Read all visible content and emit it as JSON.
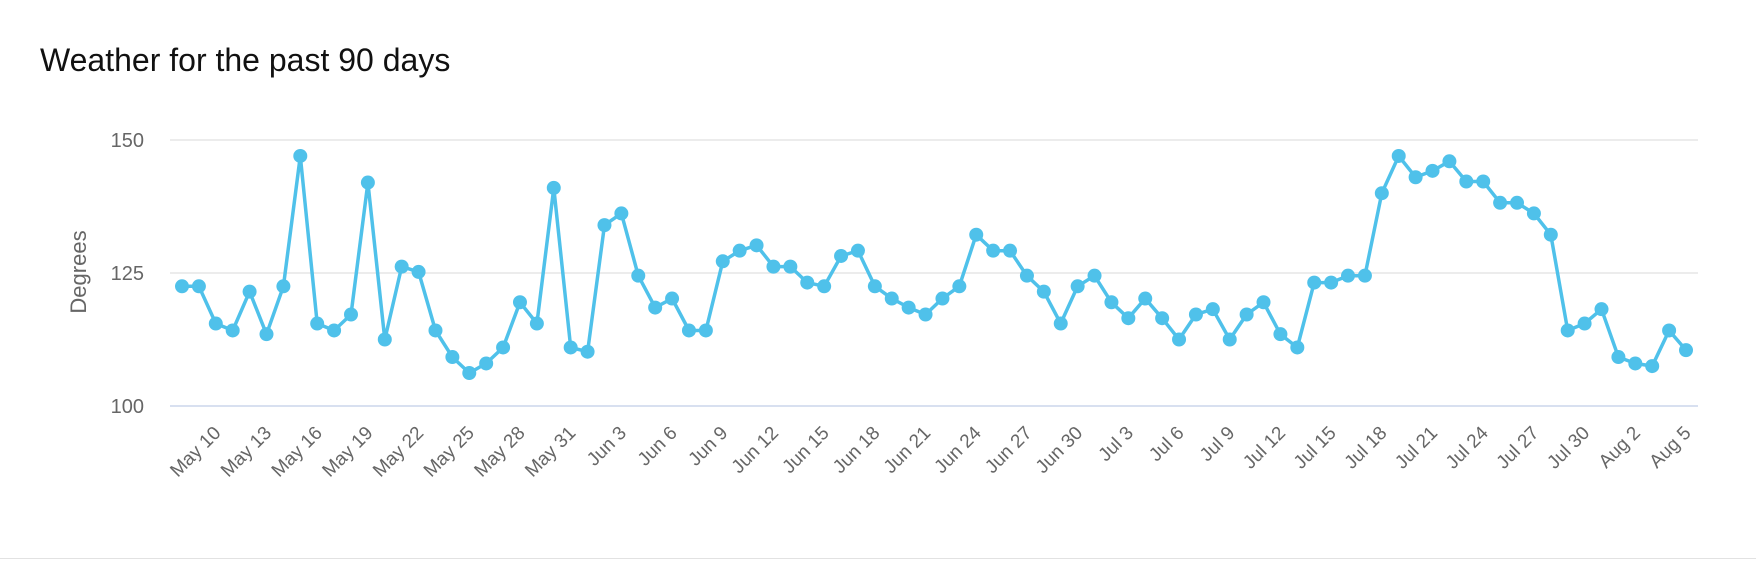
{
  "title": "Weather for the past 90 days",
  "chart_data": {
    "type": "line",
    "title": "Weather for the past 90 days",
    "ylabel": "Degrees",
    "xlabel": "",
    "ylim": [
      100,
      150
    ],
    "yticks": [
      100,
      125,
      150
    ],
    "grid": true,
    "color": "#4fc1ea",
    "tick_labels": [
      "May 10",
      "May 13",
      "May 16",
      "May 19",
      "May 22",
      "May 25",
      "May 28",
      "May 31",
      "Jun 3",
      "Jun 6",
      "Jun 9",
      "Jun 12",
      "Jun 15",
      "Jun 18",
      "Jun 21",
      "Jun 24",
      "Jun 27",
      "Jun 30",
      "Jul 3",
      "Jul 6",
      "Jul 9",
      "Jul 12",
      "Jul 15",
      "Jul 18",
      "Jul 21",
      "Jul 24",
      "Jul 27",
      "Jul 30",
      "Aug 2",
      "Aug 5"
    ],
    "x": [
      "May 8",
      "May 9",
      "May 10",
      "May 11",
      "May 12",
      "May 13",
      "May 14",
      "May 15",
      "May 16",
      "May 17",
      "May 18",
      "May 19",
      "May 20",
      "May 21",
      "May 22",
      "May 23",
      "May 24",
      "May 25",
      "May 26",
      "May 27",
      "May 28",
      "May 29",
      "May 30",
      "May 31",
      "Jun 1",
      "Jun 2",
      "Jun 3",
      "Jun 4",
      "Jun 5",
      "Jun 6",
      "Jun 7",
      "Jun 8",
      "Jun 9",
      "Jun 10",
      "Jun 11",
      "Jun 12",
      "Jun 13",
      "Jun 14",
      "Jun 15",
      "Jun 16",
      "Jun 17",
      "Jun 18",
      "Jun 19",
      "Jun 20",
      "Jun 21",
      "Jun 22",
      "Jun 23",
      "Jun 24",
      "Jun 25",
      "Jun 26",
      "Jun 27",
      "Jun 28",
      "Jun 29",
      "Jun 30",
      "Jul 1",
      "Jul 2",
      "Jul 3",
      "Jul 4",
      "Jul 5",
      "Jul 6",
      "Jul 7",
      "Jul 8",
      "Jul 9",
      "Jul 10",
      "Jul 11",
      "Jul 12",
      "Jul 13",
      "Jul 14",
      "Jul 15",
      "Jul 16",
      "Jul 17",
      "Jul 18",
      "Jul 19",
      "Jul 20",
      "Jul 21",
      "Jul 22",
      "Jul 23",
      "Jul 24",
      "Jul 25",
      "Jul 26",
      "Jul 27",
      "Jul 28",
      "Jul 29",
      "Jul 30",
      "Jul 31",
      "Aug 1",
      "Aug 2",
      "Aug 3",
      "Aug 4",
      "Aug 5"
    ],
    "values": [
      122.5,
      122.5,
      115.5,
      114.2,
      121.5,
      113.5,
      122.5,
      147.0,
      115.5,
      114.2,
      117.2,
      142.0,
      112.5,
      126.2,
      125.2,
      114.2,
      109.2,
      106.2,
      108.0,
      111.0,
      119.5,
      115.5,
      141.0,
      111.0,
      110.2,
      134.0,
      136.2,
      124.5,
      118.5,
      120.2,
      114.2,
      114.2,
      127.2,
      129.2,
      130.2,
      126.2,
      126.2,
      123.2,
      122.5,
      128.2,
      129.2,
      122.5,
      120.2,
      118.5,
      117.2,
      120.2,
      122.5,
      132.2,
      129.2,
      129.2,
      124.5,
      121.5,
      115.5,
      122.5,
      124.5,
      119.5,
      116.5,
      120.2,
      116.5,
      112.5,
      117.2,
      118.2,
      112.5,
      117.2,
      119.5,
      113.5,
      111.0,
      123.2,
      123.2,
      124.5,
      124.5,
      140.0,
      147.0,
      143.0,
      144.2,
      146.0,
      142.2,
      142.2,
      138.2,
      138.2,
      136.2,
      132.2,
      114.2,
      115.5,
      118.2,
      109.2,
      108.0,
      107.5,
      114.2,
      110.5
    ]
  }
}
